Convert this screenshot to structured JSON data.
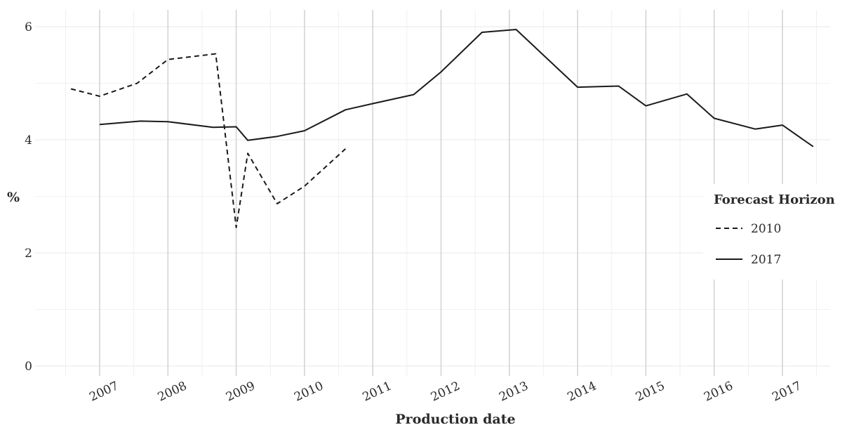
{
  "chart_data": {
    "type": "line",
    "title": "",
    "xlabel": "Production date",
    "ylabel": "%",
    "ylim": [
      0,
      6.2
    ],
    "xlim": [
      2006.5,
      2017.6
    ],
    "y_ticks": [
      0,
      2,
      4,
      6
    ],
    "x_ticks": [
      "2007",
      "2008",
      "2009",
      "2010",
      "2011",
      "2012",
      "2013",
      "2014",
      "2015",
      "2016",
      "2017"
    ],
    "grid": true,
    "legend": {
      "title": "Forecast Horizon",
      "position": "right"
    },
    "colors": {
      "line": "#1a1a1a",
      "grid_major": "#d4d4d4",
      "grid_minor": "#ececec"
    },
    "series": [
      {
        "name": "2010",
        "style": "dashed",
        "x": [
          2006.58,
          2007.0,
          2007.55,
          2008.0,
          2008.7,
          2009.0,
          2009.17,
          2009.6,
          2010.0,
          2010.6
        ],
        "y": [
          4.9,
          4.77,
          5.0,
          5.42,
          5.52,
          2.45,
          3.76,
          2.87,
          3.18,
          3.84
        ]
      },
      {
        "name": "2017",
        "style": "solid",
        "x": [
          2007.0,
          2007.6,
          2008.0,
          2008.66,
          2009.0,
          2009.17,
          2009.6,
          2010.0,
          2010.6,
          2011.0,
          2011.6,
          2012.0,
          2012.6,
          2013.1,
          2014.0,
          2014.6,
          2015.0,
          2015.6,
          2016.0,
          2016.6,
          2017.0,
          2017.45
        ],
        "y": [
          4.27,
          4.33,
          4.32,
          4.22,
          4.23,
          3.99,
          4.06,
          4.16,
          4.53,
          4.64,
          4.8,
          5.2,
          5.9,
          5.95,
          4.93,
          4.95,
          4.6,
          4.81,
          4.38,
          4.19,
          4.26,
          3.88
        ]
      }
    ]
  }
}
